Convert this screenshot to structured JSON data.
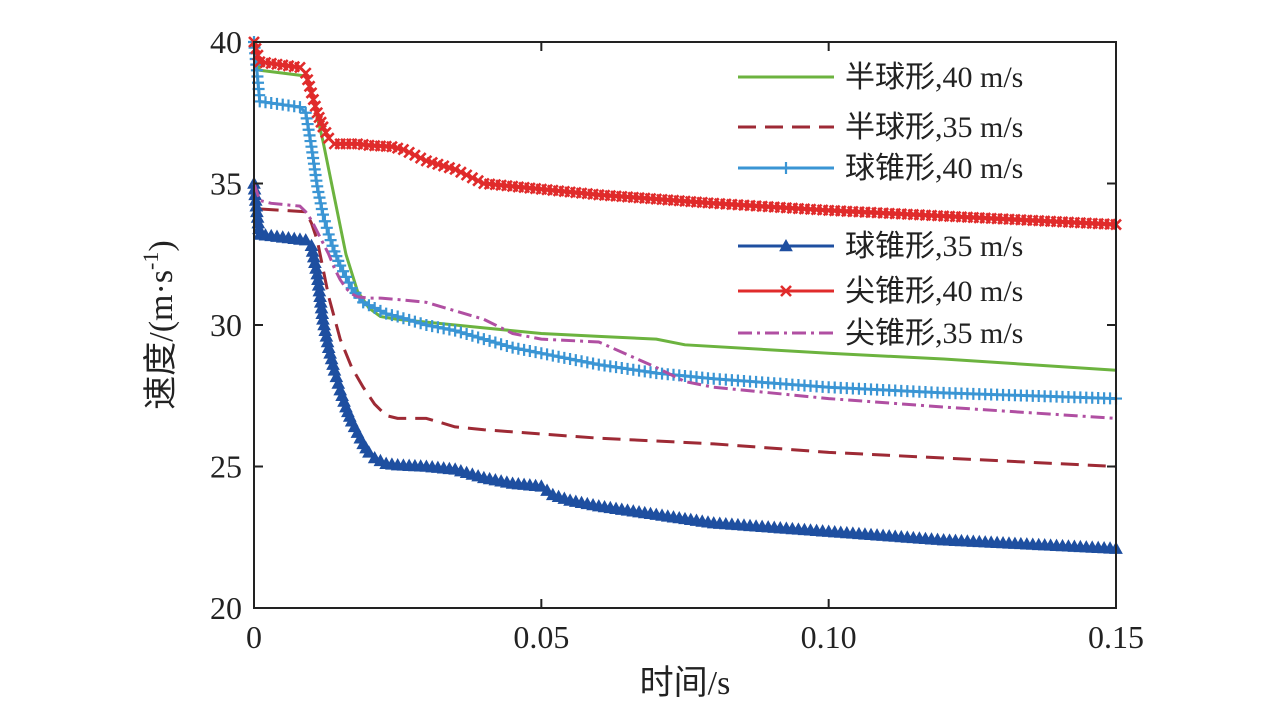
{
  "chart_data": {
    "type": "line",
    "xlabel": "时间/s",
    "ylabel": "速度/(m·s",
    "ylabel_sup": "-1",
    "ylabel_close": ")",
    "xlim": [
      0,
      0.15
    ],
    "ylim": [
      20,
      40
    ],
    "xticks": [
      0,
      0.05,
      0.1,
      0.15
    ],
    "xtick_labels": [
      "0",
      "0.05",
      "0.10",
      "0.15"
    ],
    "yticks": [
      20,
      25,
      30,
      35,
      40
    ],
    "ytick_labels": [
      "20",
      "25",
      "30",
      "35",
      "40"
    ],
    "grid": false,
    "legend_position": "top-right",
    "series": [
      {
        "name": "半球形,40 m/s",
        "color": "#6cb33f",
        "dash": "solid",
        "marker": "none",
        "x": [
          0,
          0.001,
          0.009,
          0.01,
          0.012,
          0.014,
          0.016,
          0.018,
          0.02,
          0.022,
          0.025,
          0.03,
          0.04,
          0.05,
          0.06,
          0.07,
          0.075,
          0.1,
          0.12,
          0.15
        ],
        "y": [
          40.0,
          39.0,
          38.8,
          38.2,
          36.5,
          34.5,
          32.5,
          31.2,
          30.6,
          30.3,
          30.2,
          30.1,
          29.9,
          29.7,
          29.6,
          29.5,
          29.3,
          29.0,
          28.8,
          28.4
        ]
      },
      {
        "name": "半球形,35 m/s",
        "color": "#9e2a35",
        "dash": "18,9",
        "marker": "none",
        "x": [
          0,
          0.001,
          0.009,
          0.01,
          0.011,
          0.013,
          0.015,
          0.017,
          0.019,
          0.021,
          0.023,
          0.025,
          0.03,
          0.035,
          0.04,
          0.06,
          0.08,
          0.1,
          0.12,
          0.15
        ],
        "y": [
          35.0,
          34.1,
          34.0,
          33.6,
          33.0,
          31.0,
          29.5,
          28.5,
          27.8,
          27.2,
          26.8,
          26.7,
          26.7,
          26.4,
          26.3,
          26.0,
          25.8,
          25.5,
          25.3,
          25.0
        ]
      },
      {
        "name": "球锥形,40 m/s",
        "color": "#3a95d4",
        "dash": "solid",
        "marker": "plus",
        "x": [
          0,
          0.0005,
          0.001,
          0.008,
          0.009,
          0.01,
          0.011,
          0.012,
          0.013,
          0.014,
          0.015,
          0.017,
          0.019,
          0.021,
          0.023,
          0.025,
          0.03,
          0.035,
          0.04,
          0.045,
          0.05,
          0.06,
          0.07,
          0.08,
          0.1,
          0.12,
          0.15
        ],
        "y": [
          40.0,
          39.0,
          37.9,
          37.7,
          37.5,
          36.3,
          34.9,
          33.9,
          33.2,
          32.6,
          32.1,
          31.3,
          30.8,
          30.6,
          30.4,
          30.3,
          30.0,
          29.8,
          29.5,
          29.2,
          29.0,
          28.6,
          28.3,
          28.1,
          27.8,
          27.6,
          27.4
        ]
      },
      {
        "name": "球锥形,35 m/s",
        "color": "#1e4fa0",
        "dash": "solid",
        "marker": "triangle",
        "x": [
          0,
          0.0005,
          0.001,
          0.009,
          0.01,
          0.011,
          0.012,
          0.013,
          0.014,
          0.015,
          0.016,
          0.017,
          0.018,
          0.019,
          0.02,
          0.021,
          0.022,
          0.023,
          0.025,
          0.03,
          0.035,
          0.04,
          0.045,
          0.05,
          0.052,
          0.055,
          0.06,
          0.07,
          0.08,
          0.1,
          0.12,
          0.15
        ],
        "y": [
          35.0,
          34.0,
          33.2,
          33.0,
          32.8,
          31.8,
          30.2,
          29.2,
          28.4,
          27.7,
          27.1,
          26.6,
          26.2,
          25.8,
          25.5,
          25.3,
          25.2,
          25.1,
          25.05,
          25.0,
          24.9,
          24.6,
          24.4,
          24.3,
          24.0,
          23.8,
          23.6,
          23.3,
          23.0,
          22.7,
          22.4,
          22.1
        ]
      },
      {
        "name": "尖锥形,40 m/s",
        "color": "#e02b2b",
        "dash": "solid",
        "marker": "x",
        "x": [
          0,
          0.001,
          0.008,
          0.009,
          0.01,
          0.011,
          0.012,
          0.013,
          0.014,
          0.018,
          0.02,
          0.024,
          0.026,
          0.03,
          0.035,
          0.038,
          0.04,
          0.045,
          0.05,
          0.06,
          0.07,
          0.08,
          0.1,
          0.12,
          0.15
        ],
        "y": [
          40.0,
          39.3,
          39.1,
          38.9,
          38.2,
          37.5,
          37.0,
          36.6,
          36.4,
          36.4,
          36.35,
          36.3,
          36.2,
          35.8,
          35.5,
          35.2,
          35.0,
          34.9,
          34.8,
          34.6,
          34.45,
          34.3,
          34.05,
          33.85,
          33.55
        ]
      },
      {
        "name": "尖锥形,35 m/s",
        "color": "#b04fa2",
        "dash": "14,5,3,5",
        "marker": "none",
        "x": [
          0,
          0.001,
          0.003,
          0.008,
          0.009,
          0.01,
          0.011,
          0.012,
          0.013,
          0.014,
          0.015,
          0.016,
          0.017,
          0.018,
          0.02,
          0.022,
          0.025,
          0.03,
          0.035,
          0.04,
          0.045,
          0.05,
          0.06,
          0.07,
          0.075,
          0.08,
          0.1,
          0.12,
          0.15
        ],
        "y": [
          35.0,
          34.4,
          34.3,
          34.2,
          34.0,
          33.7,
          33.3,
          32.9,
          32.5,
          32.0,
          31.6,
          31.3,
          31.1,
          31.0,
          30.95,
          30.95,
          30.9,
          30.8,
          30.5,
          30.2,
          29.7,
          29.5,
          29.4,
          28.5,
          28.0,
          27.8,
          27.4,
          27.1,
          26.7
        ]
      }
    ]
  }
}
